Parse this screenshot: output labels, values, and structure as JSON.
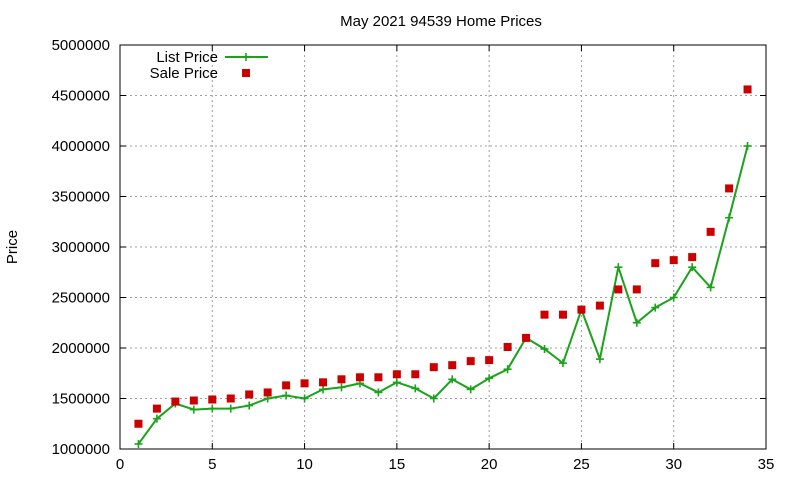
{
  "chart_data": {
    "type": "line",
    "title": "May 2021 94539 Home Prices",
    "xlabel": "",
    "ylabel": "Price",
    "xlim": [
      0,
      35
    ],
    "ylim": [
      1000000,
      5000000
    ],
    "xticks": [
      0,
      5,
      10,
      15,
      20,
      25,
      30,
      35
    ],
    "yticks": [
      1000000,
      1500000,
      2000000,
      2500000,
      3000000,
      3500000,
      4000000,
      4500000,
      5000000
    ],
    "grid": true,
    "legend_position": "top-left",
    "series": [
      {
        "name": "List Price",
        "style": "line-with-plus-markers",
        "color": "#1aa31a",
        "x": [
          1,
          2,
          3,
          4,
          5,
          6,
          7,
          8,
          9,
          10,
          11,
          12,
          13,
          14,
          15,
          16,
          17,
          18,
          19,
          20,
          21,
          22,
          23,
          24,
          25,
          26,
          27,
          28,
          29,
          30,
          31,
          32,
          33,
          34
        ],
        "values": [
          1050000,
          1300000,
          1450000,
          1390000,
          1400000,
          1400000,
          1430000,
          1500000,
          1530000,
          1500000,
          1590000,
          1610000,
          1650000,
          1560000,
          1660000,
          1600000,
          1500000,
          1690000,
          1590000,
          1700000,
          1790000,
          2100000,
          1990000,
          1850000,
          2380000,
          1890000,
          2800000,
          2250000,
          2400000,
          2500000,
          2800000,
          2600000,
          3290000,
          4000000
        ]
      },
      {
        "name": "Sale Price",
        "style": "square-markers",
        "color": "#cc0000",
        "x": [
          1,
          2,
          3,
          4,
          5,
          6,
          7,
          8,
          9,
          10,
          11,
          12,
          13,
          14,
          15,
          16,
          17,
          18,
          19,
          20,
          21,
          22,
          23,
          24,
          25,
          26,
          27,
          28,
          29,
          30,
          31,
          32,
          33,
          34
        ],
        "values": [
          1250000,
          1400000,
          1470000,
          1480000,
          1490000,
          1500000,
          1540000,
          1560000,
          1630000,
          1650000,
          1660000,
          1690000,
          1710000,
          1710000,
          1740000,
          1740000,
          1810000,
          1830000,
          1870000,
          1880000,
          2010000,
          2100000,
          2330000,
          2330000,
          2380000,
          2420000,
          2580000,
          2580000,
          2840000,
          2870000,
          2900000,
          3150000,
          3580000,
          4560000
        ]
      }
    ]
  }
}
